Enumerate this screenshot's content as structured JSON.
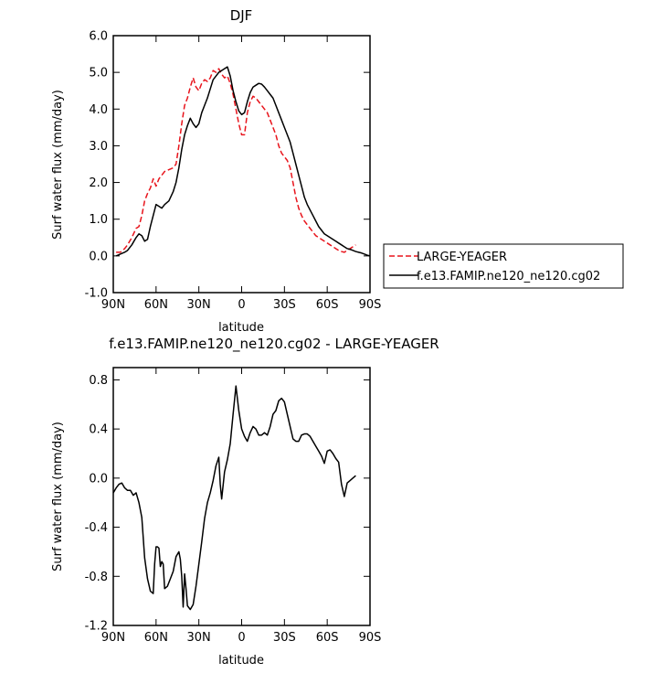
{
  "chart_data": [
    {
      "type": "line",
      "title": "DJF",
      "xlabel": "latitude",
      "ylabel": "Surf water flux (mm/day)",
      "xlim": [
        -90,
        90
      ],
      "ylim": [
        -1.0,
        6.0
      ],
      "x_ticks": [
        {
          "value": -90,
          "label": "90N"
        },
        {
          "value": -60,
          "label": "60N"
        },
        {
          "value": -30,
          "label": "30N"
        },
        {
          "value": 0,
          "label": "0"
        },
        {
          "value": 30,
          "label": "30S"
        },
        {
          "value": 60,
          "label": "60S"
        },
        {
          "value": 90,
          "label": "90S"
        }
      ],
      "y_ticks": [
        {
          "value": -1.0,
          "label": "-1.0"
        },
        {
          "value": 0.0,
          "label": "0.0"
        },
        {
          "value": 1.0,
          "label": "1.0"
        },
        {
          "value": 2.0,
          "label": "2.0"
        },
        {
          "value": 3.0,
          "label": "3.0"
        },
        {
          "value": 4.0,
          "label": "4.0"
        },
        {
          "value": 5.0,
          "label": "5.0"
        },
        {
          "value": 6.0,
          "label": "6.0"
        }
      ],
      "legend_position": "right",
      "series": [
        {
          "name": "LARGE-YEAGER",
          "color": "#e8141c",
          "dash": "dashed",
          "x": [
            -88,
            -85,
            -82,
            -80,
            -77,
            -74,
            -72,
            -70,
            -68,
            -66,
            -64,
            -62,
            -60,
            -58,
            -56,
            -54,
            -51,
            -48,
            -46,
            -44,
            -42,
            -40,
            -38,
            -36,
            -34,
            -32,
            -30,
            -28,
            -26,
            -24,
            -22,
            -20,
            -18,
            -16,
            -14,
            -12,
            -10,
            -8,
            -6,
            -4,
            -2,
            0,
            2,
            4,
            6,
            8,
            10,
            12,
            14,
            16,
            18,
            20,
            22,
            24,
            26,
            28,
            30,
            32,
            34,
            36,
            38,
            40,
            42,
            44,
            46,
            48,
            50,
            52,
            54,
            56,
            58,
            60,
            62,
            64,
            66,
            68,
            70,
            72,
            74,
            76,
            78,
            80
          ],
          "y": [
            0.1,
            0.1,
            0.2,
            0.3,
            0.5,
            0.75,
            0.8,
            1.1,
            1.5,
            1.7,
            1.85,
            2.1,
            1.9,
            2.1,
            2.2,
            2.3,
            2.35,
            2.4,
            2.5,
            3.0,
            3.6,
            4.1,
            4.3,
            4.6,
            4.85,
            4.6,
            4.5,
            4.7,
            4.8,
            4.75,
            4.85,
            5.05,
            5.0,
            5.1,
            4.95,
            4.85,
            4.9,
            4.7,
            4.4,
            4.0,
            3.6,
            3.3,
            3.3,
            3.9,
            4.2,
            4.35,
            4.3,
            4.2,
            4.1,
            4.0,
            3.9,
            3.7,
            3.5,
            3.3,
            3.0,
            2.8,
            2.7,
            2.6,
            2.4,
            2.0,
            1.6,
            1.3,
            1.1,
            0.95,
            0.85,
            0.75,
            0.65,
            0.55,
            0.5,
            0.45,
            0.4,
            0.35,
            0.3,
            0.25,
            0.2,
            0.15,
            0.12,
            0.1,
            0.15,
            0.2,
            0.25,
            0.3
          ]
        },
        {
          "name": "f.e13.FAMIP.ne120_ne120.cg02",
          "color": "#000000",
          "dash": "solid",
          "x": [
            -88,
            -85,
            -82,
            -80,
            -77,
            -74,
            -72,
            -70,
            -68,
            -66,
            -64,
            -62,
            -60,
            -58,
            -56,
            -54,
            -51,
            -48,
            -46,
            -44,
            -42,
            -40,
            -38,
            -36,
            -34,
            -32,
            -30,
            -28,
            -26,
            -24,
            -22,
            -20,
            -18,
            -16,
            -14,
            -12,
            -10,
            -8,
            -6,
            -4,
            -2,
            0,
            2,
            4,
            6,
            8,
            10,
            12,
            14,
            16,
            18,
            20,
            22,
            24,
            26,
            28,
            30,
            32,
            34,
            36,
            38,
            40,
            42,
            44,
            46,
            48,
            50,
            52,
            54,
            56,
            58,
            60,
            62,
            64,
            66,
            68,
            70,
            72,
            74,
            76,
            78,
            80,
            82,
            84,
            86,
            88,
            90
          ],
          "y": [
            0.0,
            0.05,
            0.1,
            0.15,
            0.3,
            0.5,
            0.6,
            0.55,
            0.4,
            0.45,
            0.8,
            1.1,
            1.4,
            1.35,
            1.3,
            1.4,
            1.5,
            1.75,
            2.0,
            2.4,
            2.9,
            3.3,
            3.55,
            3.75,
            3.6,
            3.5,
            3.6,
            3.9,
            4.1,
            4.3,
            4.55,
            4.8,
            4.9,
            5.0,
            5.05,
            5.1,
            5.15,
            4.9,
            4.5,
            4.2,
            3.95,
            3.85,
            3.9,
            4.2,
            4.45,
            4.6,
            4.65,
            4.7,
            4.68,
            4.6,
            4.5,
            4.4,
            4.3,
            4.1,
            3.9,
            3.7,
            3.5,
            3.3,
            3.1,
            2.8,
            2.5,
            2.2,
            1.9,
            1.6,
            1.4,
            1.25,
            1.1,
            0.95,
            0.8,
            0.7,
            0.6,
            0.55,
            0.5,
            0.45,
            0.4,
            0.35,
            0.3,
            0.25,
            0.2,
            0.18,
            0.15,
            0.12,
            0.1,
            0.08,
            0.05,
            0.02,
            0.0
          ]
        }
      ]
    },
    {
      "type": "line",
      "title": "f.e13.FAMIP.ne120_ne120.cg02 - LARGE-YEAGER",
      "xlabel": "latitude",
      "ylabel": "Surf water flux (mm/day)",
      "xlim": [
        -90,
        90
      ],
      "ylim": [
        -1.2,
        0.9
      ],
      "x_ticks": [
        {
          "value": -90,
          "label": "90N"
        },
        {
          "value": -60,
          "label": "60N"
        },
        {
          "value": -30,
          "label": "30N"
        },
        {
          "value": 0,
          "label": "0"
        },
        {
          "value": 30,
          "label": "30S"
        },
        {
          "value": 60,
          "label": "60S"
        },
        {
          "value": 90,
          "label": "90S"
        }
      ],
      "y_ticks": [
        {
          "value": -1.2,
          "label": "-1.2"
        },
        {
          "value": -0.8,
          "label": "-0.8"
        },
        {
          "value": -0.4,
          "label": "-0.4"
        },
        {
          "value": 0.0,
          "label": "0.0"
        },
        {
          "value": 0.4,
          "label": "0.4"
        },
        {
          "value": 0.8,
          "label": "0.8"
        }
      ],
      "series": [
        {
          "name": "",
          "color": "#000000",
          "dash": "solid",
          "x": [
            -90,
            -88,
            -86,
            -84,
            -82,
            -80,
            -78,
            -76,
            -74,
            -72,
            -70,
            -68,
            -66,
            -64,
            -62,
            -61,
            -60,
            -59,
            -58,
            -57,
            -56,
            -55,
            -54,
            -52,
            -50,
            -48,
            -46,
            -44,
            -43,
            -42,
            -41,
            -40,
            -39,
            -38,
            -36,
            -34,
            -32,
            -30,
            -28,
            -26,
            -24,
            -22,
            -20,
            -18,
            -16,
            -15,
            -14,
            -12,
            -10,
            -8,
            -6,
            -4,
            -2,
            0,
            2,
            4,
            6,
            8,
            10,
            12,
            14,
            16,
            18,
            20,
            22,
            24,
            26,
            28,
            30,
            32,
            34,
            36,
            38,
            40,
            42,
            44,
            46,
            48,
            50,
            52,
            54,
            56,
            58,
            60,
            62,
            64,
            66,
            68,
            70,
            72,
            74,
            76,
            78,
            80
          ],
          "y": [
            -0.12,
            -0.08,
            -0.05,
            -0.04,
            -0.08,
            -0.1,
            -0.1,
            -0.14,
            -0.12,
            -0.2,
            -0.32,
            -0.65,
            -0.82,
            -0.92,
            -0.94,
            -0.7,
            -0.56,
            -0.56,
            -0.57,
            -0.72,
            -0.68,
            -0.7,
            -0.9,
            -0.88,
            -0.82,
            -0.76,
            -0.64,
            -0.6,
            -0.66,
            -0.8,
            -1.05,
            -0.78,
            -0.9,
            -1.04,
            -1.07,
            -1.03,
            -0.88,
            -0.7,
            -0.52,
            -0.33,
            -0.2,
            -0.12,
            -0.02,
            0.1,
            0.17,
            -0.05,
            -0.17,
            0.05,
            0.15,
            0.28,
            0.52,
            0.75,
            0.55,
            0.4,
            0.34,
            0.3,
            0.37,
            0.42,
            0.4,
            0.35,
            0.35,
            0.37,
            0.35,
            0.42,
            0.52,
            0.55,
            0.63,
            0.65,
            0.62,
            0.52,
            0.42,
            0.32,
            0.3,
            0.3,
            0.35,
            0.36,
            0.36,
            0.34,
            0.3,
            0.26,
            0.22,
            0.18,
            0.12,
            0.22,
            0.23,
            0.2,
            0.16,
            0.13,
            -0.05,
            -0.15,
            -0.04,
            -0.02,
            0.0,
            0.02
          ]
        }
      ]
    }
  ],
  "legend_entries": [
    {
      "label": "LARGE-YEAGER"
    },
    {
      "label": "f.e13.FAMIP.ne120_ne120.cg02"
    }
  ]
}
